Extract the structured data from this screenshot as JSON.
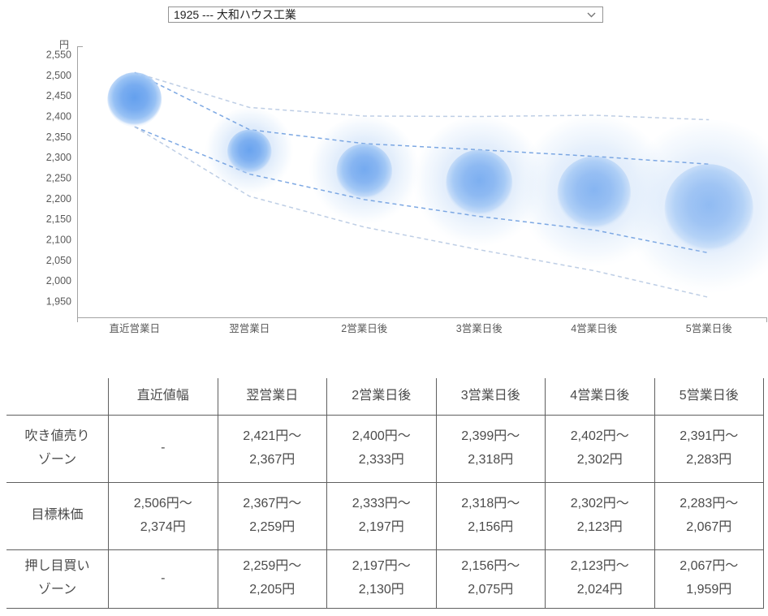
{
  "selector": {
    "value": "1925 --- 大和ハウス工業",
    "chevron_icon": "chevron-down"
  },
  "colors": {
    "bubble_core": "#64a0ee",
    "bubble_mid": "#97c1f4",
    "zone_fill": "#cfe2f9",
    "dash_strong": "#6f9fe0",
    "dash_light": "#b7c9e2",
    "axis": "#a3a3a3",
    "tick_text": "#595959",
    "table_border": "#5f5f5f",
    "table_text": "#4b4b4b"
  },
  "chart_data": {
    "type": "bubble",
    "unit_label": "円",
    "categories": [
      "直近営業日",
      "翌営業日",
      "2営業日後",
      "3営業日後",
      "4営業日後",
      "5営業日後"
    ],
    "y_axis": {
      "min": 1950,
      "max": 2550,
      "tick_values": [
        2550,
        2500,
        2450,
        2400,
        2350,
        2300,
        2250,
        2200,
        2150,
        2100,
        2050,
        2000,
        1950
      ],
      "tick_labels": [
        "2,550",
        "2,500",
        "2,450",
        "2,400",
        "2,350",
        "2,300",
        "2,250",
        "2,200",
        "2,150",
        "2,100",
        "2,050",
        "2,000",
        "1,950"
      ]
    },
    "series": [
      {
        "name": "吹き値売りゾーン",
        "ranges": [
          null,
          [
            2421,
            2367
          ],
          [
            2400,
            2333
          ],
          [
            2399,
            2318
          ],
          [
            2402,
            2302
          ],
          [
            2391,
            2283
          ]
        ]
      },
      {
        "name": "目標株価",
        "ranges": [
          [
            2506,
            2374
          ],
          [
            2367,
            2259
          ],
          [
            2333,
            2197
          ],
          [
            2318,
            2156
          ],
          [
            2302,
            2123
          ],
          [
            2283,
            2067
          ]
        ]
      },
      {
        "name": "押し目買いゾーン",
        "ranges": [
          null,
          [
            2259,
            2205
          ],
          [
            2197,
            2130
          ],
          [
            2156,
            2075
          ],
          [
            2123,
            2024
          ],
          [
            2067,
            1959
          ]
        ]
      }
    ],
    "legend": "none",
    "grid": "off"
  },
  "table": {
    "headers": [
      "",
      "直近値幅",
      "翌営業日",
      "2営業日後",
      "3営業日後",
      "4営業日後",
      "5営業日後"
    ],
    "rows": [
      {
        "label": "吹き値売り\nゾーン",
        "cells": [
          "-",
          "2,421円〜\n2,367円",
          "2,400円〜\n2,333円",
          "2,399円〜\n2,318円",
          "2,402円〜\n2,302円",
          "2,391円〜\n2,283円"
        ]
      },
      {
        "label": "目標株価",
        "cells": [
          "2,506円〜\n2,374円",
          "2,367円〜\n2,259円",
          "2,333円〜\n2,197円",
          "2,318円〜\n2,156円",
          "2,302円〜\n2,123円",
          "2,283円〜\n2,067円"
        ]
      },
      {
        "label": "押し目買い\nゾーン",
        "cells": [
          "-",
          "2,259円〜\n2,205円",
          "2,197円〜\n2,130円",
          "2,156円〜\n2,075円",
          "2,123円〜\n2,024円",
          "2,067円〜\n1,959円"
        ]
      }
    ]
  }
}
